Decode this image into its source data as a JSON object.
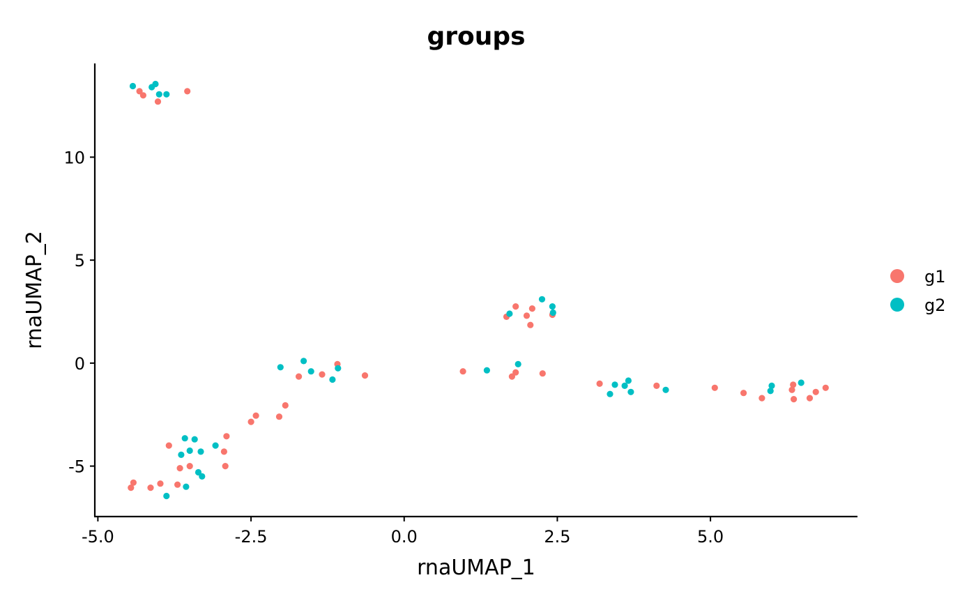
{
  "chart_data": {
    "type": "scatter",
    "title": "groups",
    "xlabel": "rnaUMAP_1",
    "ylabel": "rnaUMAP_2",
    "xlim": [
      -5.05,
      7.4
    ],
    "ylim": [
      -7.45,
      14.55
    ],
    "x_ticks": [
      -5.0,
      -2.5,
      0.0,
      2.5,
      5.0
    ],
    "x_tick_labels": [
      "-5.0",
      "-2.5",
      "0.0",
      "2.5",
      "5.0"
    ],
    "y_ticks": [
      -5,
      0,
      5,
      10
    ],
    "y_tick_labels": [
      "-5",
      "0",
      "5",
      "10"
    ],
    "grid": false,
    "legend_position": "right",
    "series": [
      {
        "name": "g1",
        "color": "#F8766D",
        "points": [
          [
            -4.32,
            13.2
          ],
          [
            -4.26,
            13.0
          ],
          [
            -4.02,
            12.7
          ],
          [
            -3.54,
            13.2
          ],
          [
            -4.46,
            -6.05
          ],
          [
            -4.42,
            -5.8
          ],
          [
            -4.14,
            -6.05
          ],
          [
            -3.98,
            -5.85
          ],
          [
            -3.7,
            -5.9
          ],
          [
            -3.66,
            -5.1
          ],
          [
            -3.5,
            -5.0
          ],
          [
            -3.84,
            -4.0
          ],
          [
            -2.94,
            -4.3
          ],
          [
            -2.92,
            -5.0
          ],
          [
            -2.9,
            -3.55
          ],
          [
            -2.5,
            -2.85
          ],
          [
            -2.42,
            -2.55
          ],
          [
            -2.04,
            -2.6
          ],
          [
            -1.94,
            -2.05
          ],
          [
            -1.72,
            -0.65
          ],
          [
            -1.34,
            -0.55
          ],
          [
            -1.09,
            -0.05
          ],
          [
            -0.64,
            -0.6
          ],
          [
            0.96,
            -0.4
          ],
          [
            1.76,
            -0.65
          ],
          [
            1.82,
            -0.45
          ],
          [
            2.26,
            -0.5
          ],
          [
            1.67,
            2.25
          ],
          [
            1.82,
            2.75
          ],
          [
            2.0,
            2.3
          ],
          [
            2.06,
            1.85
          ],
          [
            2.09,
            2.65
          ],
          [
            2.42,
            2.35
          ],
          [
            3.19,
            -1.0
          ],
          [
            4.12,
            -1.1
          ],
          [
            5.07,
            -1.2
          ],
          [
            5.54,
            -1.45
          ],
          [
            5.84,
            -1.7
          ],
          [
            6.33,
            -1.3
          ],
          [
            6.35,
            -1.05
          ],
          [
            6.36,
            -1.75
          ],
          [
            6.62,
            -1.7
          ],
          [
            6.72,
            -1.4
          ],
          [
            6.88,
            -1.2
          ]
        ]
      },
      {
        "name": "g2",
        "color": "#00BFC4",
        "points": [
          [
            -4.43,
            13.45
          ],
          [
            -4.12,
            13.4
          ],
          [
            -4.06,
            13.55
          ],
          [
            -4.0,
            13.05
          ],
          [
            -3.88,
            13.05
          ],
          [
            -3.88,
            -6.45
          ],
          [
            -3.64,
            -4.45
          ],
          [
            -3.58,
            -3.65
          ],
          [
            -3.56,
            -6.0
          ],
          [
            -3.5,
            -4.25
          ],
          [
            -3.42,
            -3.7
          ],
          [
            -3.36,
            -5.3
          ],
          [
            -3.32,
            -4.3
          ],
          [
            -3.3,
            -5.5
          ],
          [
            -3.08,
            -4.0
          ],
          [
            -2.02,
            -0.2
          ],
          [
            -1.64,
            0.1
          ],
          [
            -1.52,
            -0.4
          ],
          [
            -1.17,
            -0.8
          ],
          [
            -1.08,
            -0.25
          ],
          [
            1.35,
            -0.35
          ],
          [
            1.86,
            -0.05
          ],
          [
            1.72,
            2.4
          ],
          [
            2.25,
            3.1
          ],
          [
            2.42,
            2.75
          ],
          [
            2.43,
            2.45
          ],
          [
            3.36,
            -1.5
          ],
          [
            3.44,
            -1.05
          ],
          [
            3.6,
            -1.1
          ],
          [
            3.66,
            -0.85
          ],
          [
            3.7,
            -1.4
          ],
          [
            4.27,
            -1.3
          ],
          [
            5.98,
            -1.35
          ],
          [
            6.0,
            -1.1
          ],
          [
            6.48,
            -0.95
          ]
        ]
      }
    ]
  }
}
